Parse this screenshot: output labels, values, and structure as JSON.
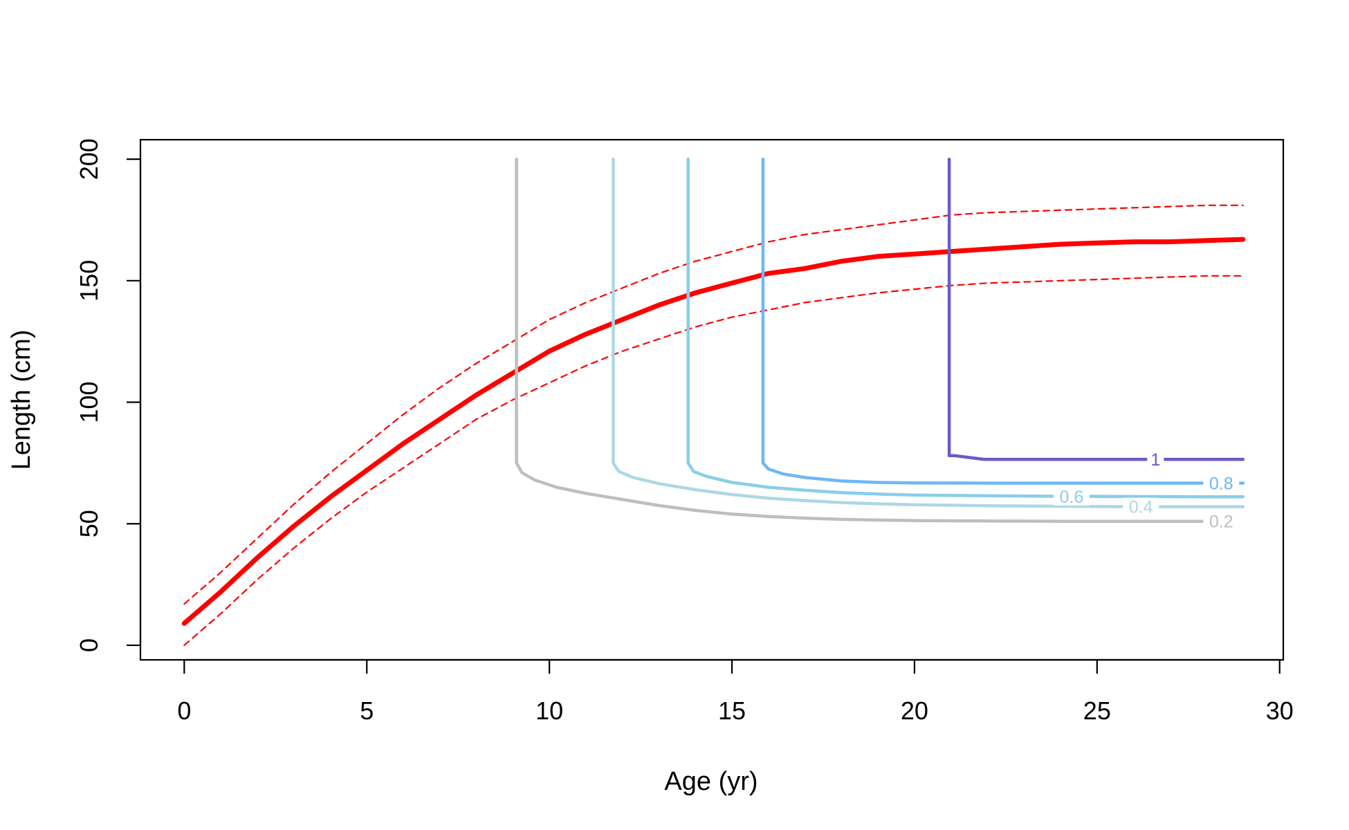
{
  "chart_data": {
    "type": "line",
    "title": "",
    "xlabel": "Age (yr)",
    "ylabel": "Length (cm)",
    "xlim": [
      -1.2,
      30.1
    ],
    "ylim": [
      -6,
      208
    ],
    "xticks": [
      0,
      5,
      10,
      15,
      20,
      25,
      30
    ],
    "yticks": [
      0,
      50,
      100,
      150,
      200
    ],
    "grid": false,
    "legend": "none",
    "series": [
      {
        "role": "growth-mean",
        "color": "#ff0000",
        "style": "solid",
        "x": [
          0,
          1,
          2,
          3,
          4,
          5,
          6,
          7,
          8,
          9,
          10,
          11,
          12,
          13,
          14,
          15,
          16,
          17,
          18,
          19,
          20,
          21,
          22,
          23,
          24,
          25,
          26,
          27,
          28,
          29
        ],
        "y": [
          9,
          22,
          36,
          49,
          61,
          72,
          83,
          93,
          103,
          112,
          121,
          128,
          134,
          140,
          145,
          149,
          153,
          155,
          158,
          160,
          161,
          162,
          163,
          164,
          165,
          165.5,
          166,
          166,
          166.5,
          167
        ]
      },
      {
        "role": "growth-upper",
        "color": "#ff0000",
        "style": "dashed",
        "x": [
          0,
          1,
          2,
          3,
          4,
          5,
          6,
          7,
          8,
          9,
          10,
          11,
          12,
          13,
          14,
          15,
          16,
          17,
          18,
          19,
          20,
          21,
          22,
          23,
          24,
          25,
          26,
          27,
          28,
          29
        ],
        "y": [
          17,
          30,
          44,
          58,
          71,
          83,
          95,
          106,
          116,
          125,
          134,
          141,
          147,
          153,
          158,
          162,
          166,
          169,
          171,
          173,
          175,
          177,
          178,
          178.5,
          179,
          179.5,
          180,
          180.5,
          181,
          181
        ]
      },
      {
        "role": "growth-lower",
        "color": "#ff0000",
        "style": "dashed",
        "x": [
          0,
          1,
          2,
          3,
          4,
          5,
          6,
          7,
          8,
          9,
          10,
          11,
          12,
          13,
          14,
          15,
          16,
          17,
          18,
          19,
          20,
          21,
          22,
          23,
          24,
          25,
          26,
          27,
          28,
          29
        ],
        "y": [
          0,
          13,
          27,
          40,
          52,
          63,
          73,
          83,
          93,
          101,
          108,
          115,
          121,
          126,
          131,
          135,
          138,
          141,
          143,
          145,
          146.5,
          148,
          149,
          149.5,
          150,
          150.5,
          151,
          151.5,
          152,
          152
        ]
      },
      {
        "name": "0.2",
        "color": "#bebebe",
        "x": [
          9.1,
          9.1,
          9.25,
          9.6,
          10.2,
          11,
          12,
          13,
          14,
          15,
          16,
          17,
          18,
          19,
          20,
          22,
          24,
          26,
          28
        ],
        "y": [
          200,
          75,
          71,
          68,
          65,
          62.5,
          60,
          57.5,
          55.5,
          54,
          53,
          52.3,
          51.8,
          51.5,
          51.3,
          51.1,
          51,
          51,
          51
        ]
      },
      {
        "name": "0.4",
        "color": "#add8e6",
        "x": [
          11.75,
          11.75,
          11.9,
          12.3,
          13,
          14,
          15,
          16,
          17,
          18,
          19,
          20,
          22,
          24,
          26,
          28,
          29
        ],
        "y": [
          200,
          75,
          71.5,
          69,
          66.5,
          64,
          62,
          60.5,
          59.5,
          58.7,
          58.2,
          57.8,
          57.4,
          57.2,
          57,
          57,
          57
        ]
      },
      {
        "name": "0.6",
        "color": "#87ceeb",
        "x": [
          13.8,
          13.8,
          13.95,
          14.3,
          15,
          16,
          17,
          18,
          19,
          20,
          22,
          24,
          26,
          28,
          29
        ],
        "y": [
          200,
          75,
          71.5,
          69.5,
          67,
          65,
          63.8,
          62.8,
          62.2,
          61.8,
          61.5,
          61.3,
          61.2,
          61.1,
          61.1
        ]
      },
      {
        "name": "0.8",
        "color": "#6cb8f7",
        "x": [
          15.85,
          15.85,
          16,
          16.4,
          17,
          18,
          19,
          20,
          22,
          24,
          26,
          28,
          29
        ],
        "y": [
          200,
          75,
          72.5,
          70.5,
          69,
          67.6,
          67,
          66.8,
          66.7,
          66.7,
          66.7,
          66.7,
          66.7
        ]
      },
      {
        "name": "1",
        "color": "#6a5acd",
        "x": [
          20.95,
          20.95,
          21.1,
          21.9,
          24,
          26,
          28,
          29
        ],
        "y": [
          200,
          78,
          78,
          76.5,
          76.5,
          76.5,
          76.5,
          76.5
        ]
      }
    ],
    "contour_labels": [
      {
        "text": "1",
        "x": 26.6,
        "y": 76.5,
        "color": "#6a5acd"
      },
      {
        "text": "0.8",
        "x": 28.4,
        "y": 66.7,
        "color": "#6cb8f7"
      },
      {
        "text": "0.6",
        "x": 24.3,
        "y": 61.2,
        "color": "#87ceeb"
      },
      {
        "text": "0.4",
        "x": 26.2,
        "y": 57,
        "color": "#add8e6"
      },
      {
        "text": "0.2",
        "x": 28.4,
        "y": 51,
        "color": "#bebebe"
      }
    ]
  }
}
